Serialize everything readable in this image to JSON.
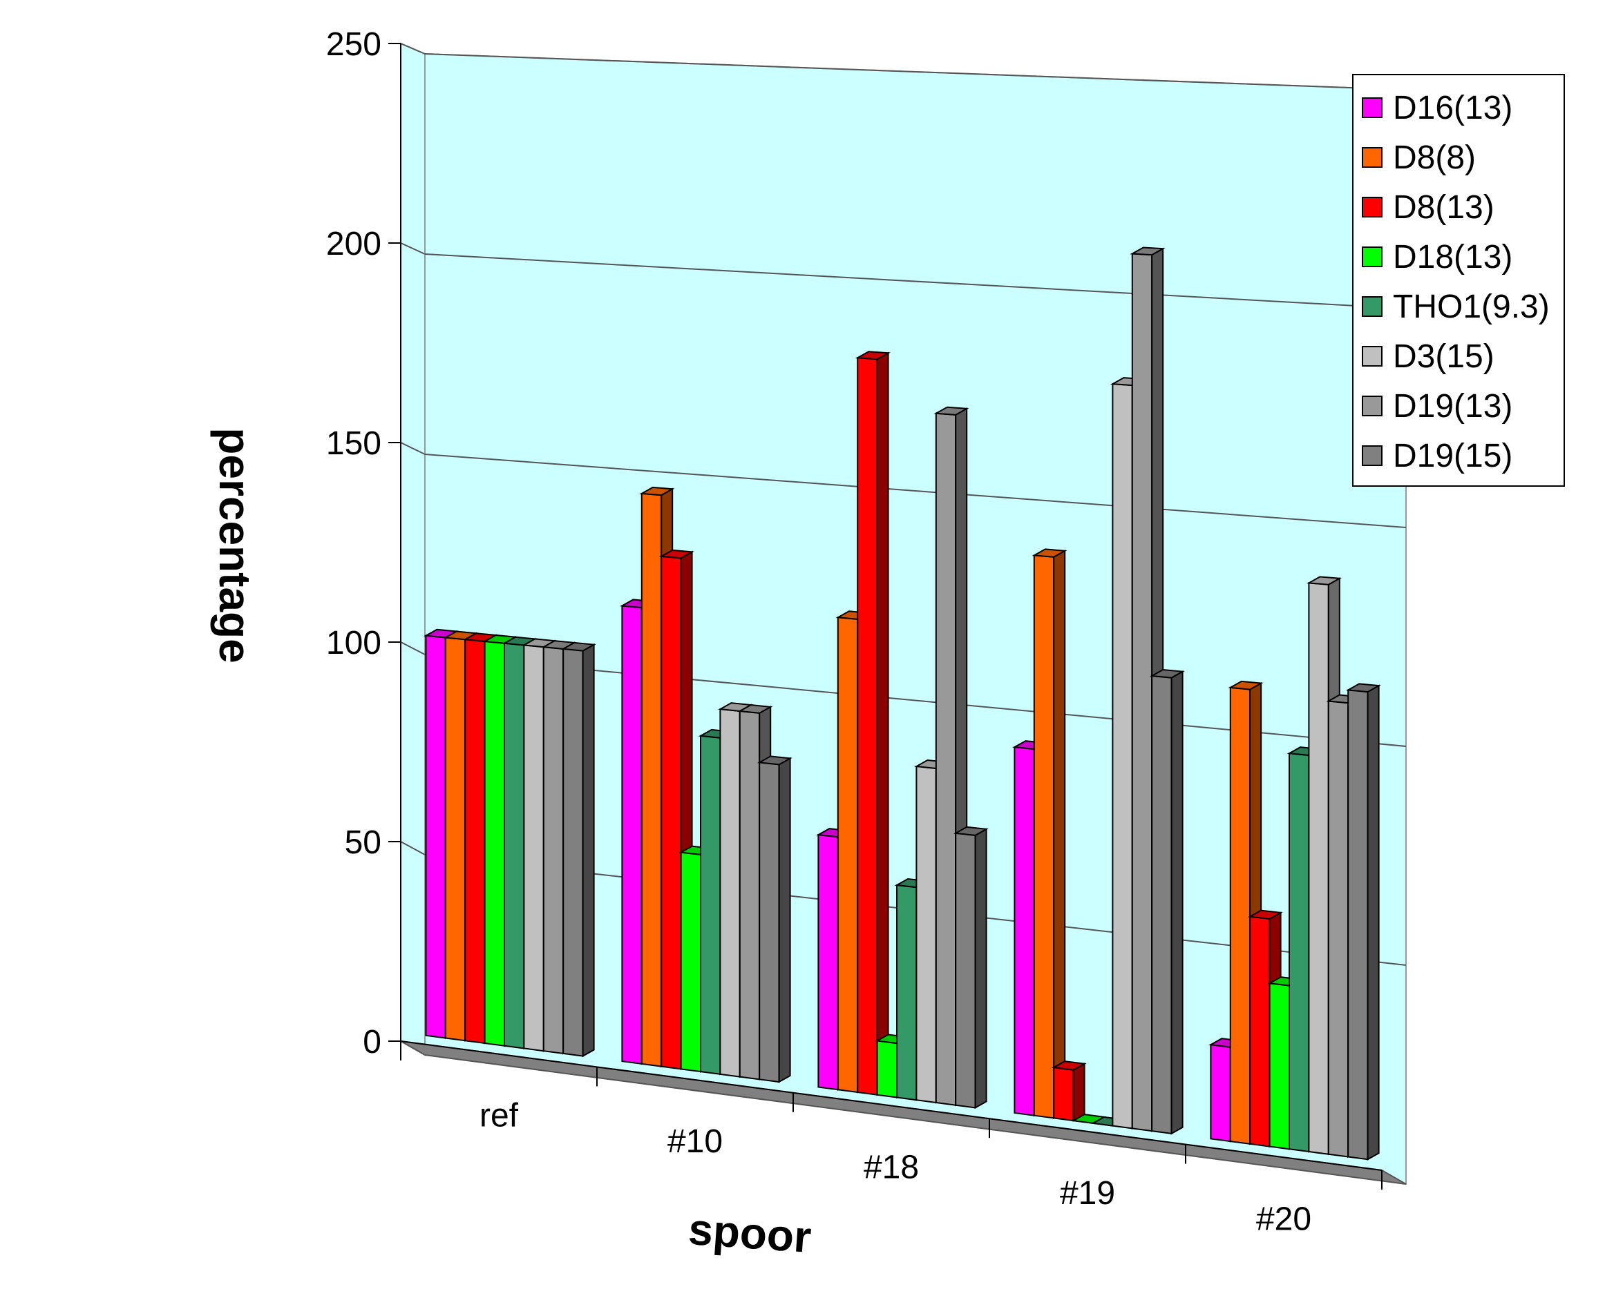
{
  "chart_data": {
    "type": "bar",
    "xlabel": "spoor",
    "ylabel": "percentage",
    "ylim": [
      0,
      250
    ],
    "yticks": [
      "0",
      "50",
      "100",
      "150",
      "200",
      "250"
    ],
    "grid": true,
    "legend_position": "right",
    "categories": [
      "ref",
      "#10",
      "#18",
      "#19",
      "#20"
    ],
    "series": [
      {
        "name": "D16(13)",
        "color": "#ff00ff",
        "values": [
          100,
          112,
          61,
          87,
          22
        ]
      },
      {
        "name": "D8(8)",
        "color": "#ff6600",
        "values": [
          100,
          140,
          114,
          133,
          106
        ]
      },
      {
        "name": "D8(13)",
        "color": "#ff0000",
        "values": [
          100,
          125,
          177,
          12,
          53
        ]
      },
      {
        "name": "D18(13)",
        "color": "#00ff00",
        "values": [
          100,
          53,
          13,
          0,
          38
        ]
      },
      {
        "name": "THO1(9.3)",
        "color": "#339966",
        "values": [
          100,
          82,
          51,
          0,
          92
        ]
      },
      {
        "name": "D3(15)",
        "color": "#c0c0c0",
        "values": [
          100,
          89,
          80,
          175,
          132
        ]
      },
      {
        "name": "D19(13)",
        "color": "#999999",
        "values": [
          100,
          89,
          165,
          206,
          105
        ]
      },
      {
        "name": "D19(15)",
        "color": "#808080",
        "values": [
          100,
          77,
          65,
          107,
          108
        ]
      }
    ]
  }
}
